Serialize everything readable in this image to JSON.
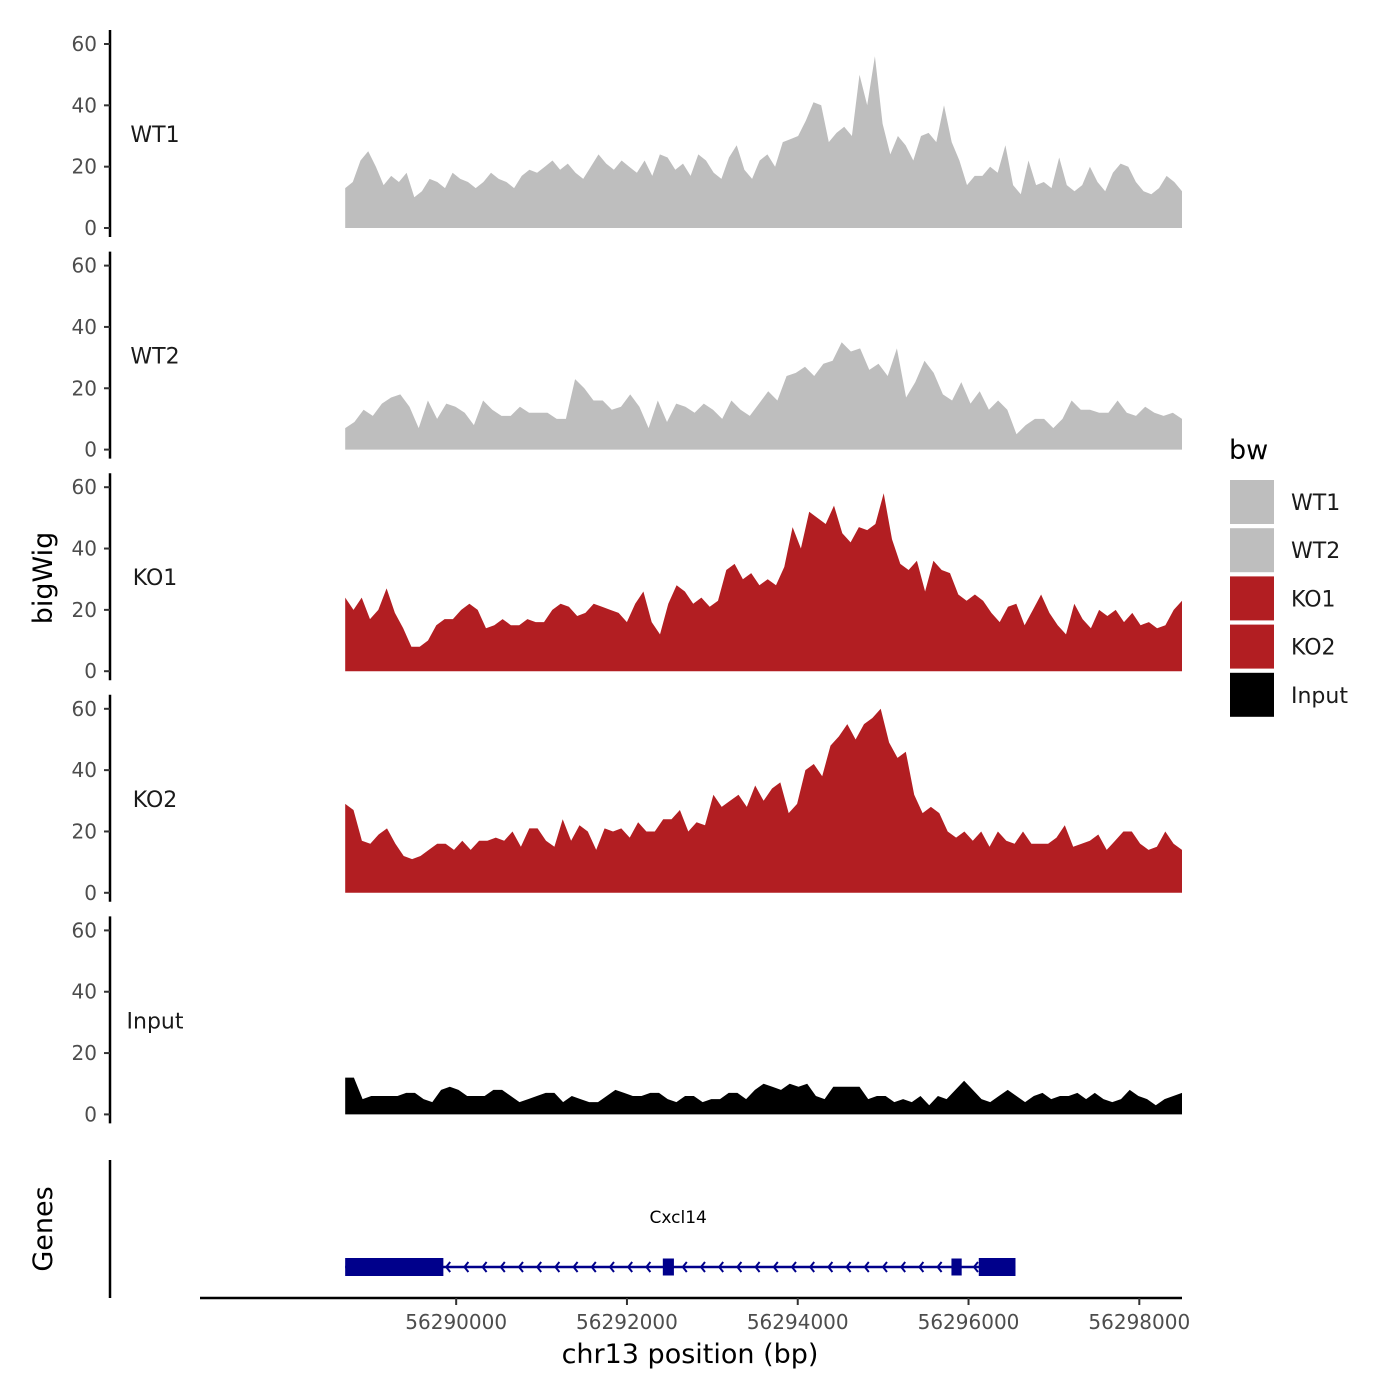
{
  "chart_data": {
    "type": "area",
    "title": "",
    "ylabel": "bigWig",
    "xlabel": "chr13 position (bp)",
    "genes_label": "Genes",
    "chromosome": "chr13",
    "x_range": [
      56287000,
      56298500
    ],
    "signal_range": [
      56288700,
      56298500
    ],
    "ylim": [
      0,
      60
    ],
    "y_ticks": [
      "0",
      "20",
      "40",
      "60"
    ],
    "x_ticks": [
      {
        "value": 56290000,
        "label": "56290000"
      },
      {
        "value": 56292000,
        "label": "56292000"
      },
      {
        "value": 56294000,
        "label": "56294000"
      },
      {
        "value": 56296000,
        "label": "56296000"
      },
      {
        "value": 56298000,
        "label": "56298000"
      }
    ],
    "legend": {
      "title": "bw",
      "entries": [
        {
          "label": "WT1",
          "color": "#bebebe"
        },
        {
          "label": "WT2",
          "color": "#bebebe"
        },
        {
          "label": "KO1",
          "color": "#b21e22"
        },
        {
          "label": "KO2",
          "color": "#b21e22"
        },
        {
          "label": "Input",
          "color": "#000000"
        }
      ]
    },
    "series": [
      {
        "name": "WT1",
        "color": "#bebebe",
        "values": [
          13,
          15,
          22,
          25,
          20,
          14,
          17,
          15,
          18,
          10,
          12,
          16,
          15,
          13,
          18,
          16,
          15,
          13,
          15,
          18,
          16,
          15,
          13,
          17,
          19,
          18,
          20,
          22,
          19,
          21,
          18,
          16,
          20,
          24,
          21,
          19,
          22,
          20,
          18,
          22,
          17,
          24,
          23,
          19,
          21,
          17,
          24,
          22,
          18,
          16,
          23,
          27,
          19,
          16,
          22,
          24,
          20,
          28,
          29,
          30,
          35,
          41,
          40,
          28,
          31,
          33,
          30,
          50,
          40,
          56,
          34,
          24,
          30,
          27,
          22,
          30,
          31,
          28,
          40,
          28,
          22,
          14,
          17,
          17,
          20,
          18,
          27,
          14,
          11,
          22,
          14,
          15,
          13,
          23,
          14,
          12,
          14,
          20,
          15,
          12,
          18,
          21,
          20,
          15,
          12,
          11,
          13,
          17,
          15,
          12
        ]
      },
      {
        "name": "WT2",
        "color": "#bebebe",
        "values": [
          7,
          9,
          13,
          11,
          15,
          17,
          18,
          14,
          7,
          16,
          10,
          15,
          14,
          12,
          8,
          16,
          13,
          11,
          11,
          14,
          12,
          12,
          12,
          10,
          10,
          23,
          20,
          16,
          16,
          13,
          14,
          18,
          14,
          7,
          16,
          9,
          15,
          14,
          12,
          15,
          13,
          10,
          16,
          13,
          11,
          15,
          19,
          16,
          24,
          25,
          27,
          24,
          28,
          29,
          35,
          32,
          33,
          26,
          28,
          24,
          33,
          17,
          22,
          29,
          25,
          18,
          16,
          22,
          15,
          19,
          13,
          16,
          13,
          5,
          8,
          10,
          10,
          7,
          10,
          16,
          13,
          13,
          12,
          12,
          16,
          12,
          11,
          14,
          12,
          11,
          12,
          10
        ]
      },
      {
        "name": "KO1",
        "color": "#b21e22",
        "values": [
          24,
          20,
          24,
          17,
          20,
          27,
          19,
          14,
          8,
          8,
          10,
          15,
          17,
          17,
          20,
          22,
          20,
          14,
          15,
          17,
          15,
          15,
          17,
          16,
          16,
          20,
          22,
          21,
          18,
          19,
          22,
          21,
          20,
          19,
          16,
          22,
          26,
          16,
          12,
          22,
          28,
          26,
          22,
          24,
          21,
          23,
          33,
          35,
          30,
          32,
          28,
          30,
          28,
          34,
          47,
          40,
          52,
          50,
          48,
          54,
          45,
          42,
          47,
          46,
          48,
          58,
          43,
          35,
          33,
          36,
          26,
          36,
          33,
          32,
          25,
          23,
          25,
          23,
          19,
          16,
          21,
          22,
          15,
          20,
          25,
          19,
          15,
          12,
          22,
          17,
          14,
          20,
          18,
          20,
          16,
          19,
          15,
          16,
          14,
          15,
          20,
          23
        ]
      },
      {
        "name": "KO2",
        "color": "#b21e22",
        "values": [
          29,
          27,
          17,
          16,
          19,
          21,
          16,
          12,
          11,
          12,
          14,
          16,
          16,
          14,
          17,
          14,
          17,
          17,
          18,
          17,
          20,
          15,
          21,
          21,
          17,
          15,
          24,
          17,
          22,
          20,
          14,
          21,
          20,
          21,
          18,
          23,
          20,
          20,
          24,
          24,
          27,
          20,
          23,
          22,
          32,
          28,
          30,
          32,
          28,
          35,
          30,
          34,
          36,
          26,
          29,
          40,
          42,
          38,
          48,
          51,
          55,
          50,
          55,
          57,
          60,
          49,
          44,
          46,
          32,
          26,
          28,
          26,
          20,
          18,
          20,
          17,
          20,
          15,
          20,
          17,
          16,
          20,
          16,
          16,
          16,
          18,
          22,
          15,
          16,
          17,
          19,
          14,
          17,
          20,
          20,
          16,
          14,
          15,
          20,
          16,
          14
        ]
      },
      {
        "name": "Input",
        "color": "#000000",
        "values": [
          12,
          12,
          5,
          6,
          6,
          6,
          6,
          7,
          7,
          5,
          4,
          8,
          9,
          8,
          6,
          6,
          6,
          8,
          8,
          6,
          4,
          5,
          6,
          7,
          7,
          4,
          6,
          5,
          4,
          4,
          6,
          8,
          7,
          6,
          6,
          7,
          7,
          5,
          4,
          6,
          6,
          4,
          5,
          5,
          7,
          7,
          5,
          8,
          10,
          9,
          8,
          10,
          9,
          10,
          6,
          5,
          9,
          9,
          9,
          9,
          5,
          6,
          6,
          4,
          5,
          4,
          6,
          3,
          6,
          5,
          8,
          11,
          8,
          5,
          4,
          6,
          8,
          6,
          4,
          6,
          7,
          5,
          6,
          6,
          7,
          5,
          7,
          5,
          4,
          5,
          8,
          6,
          5,
          3,
          5,
          6,
          7
        ]
      }
    ],
    "gene": {
      "name": "Cxcl14",
      "strand": "-",
      "color": "#00008b",
      "start": 56288700,
      "end": 56296550,
      "exons": [
        {
          "start": 56288700,
          "end": 56289850,
          "kind": "utr-block"
        },
        {
          "start": 56292420,
          "end": 56292550,
          "kind": "exon"
        },
        {
          "start": 56295800,
          "end": 56295920,
          "kind": "exon"
        },
        {
          "start": 56296120,
          "end": 56296550,
          "kind": "utr-block"
        }
      ]
    }
  }
}
